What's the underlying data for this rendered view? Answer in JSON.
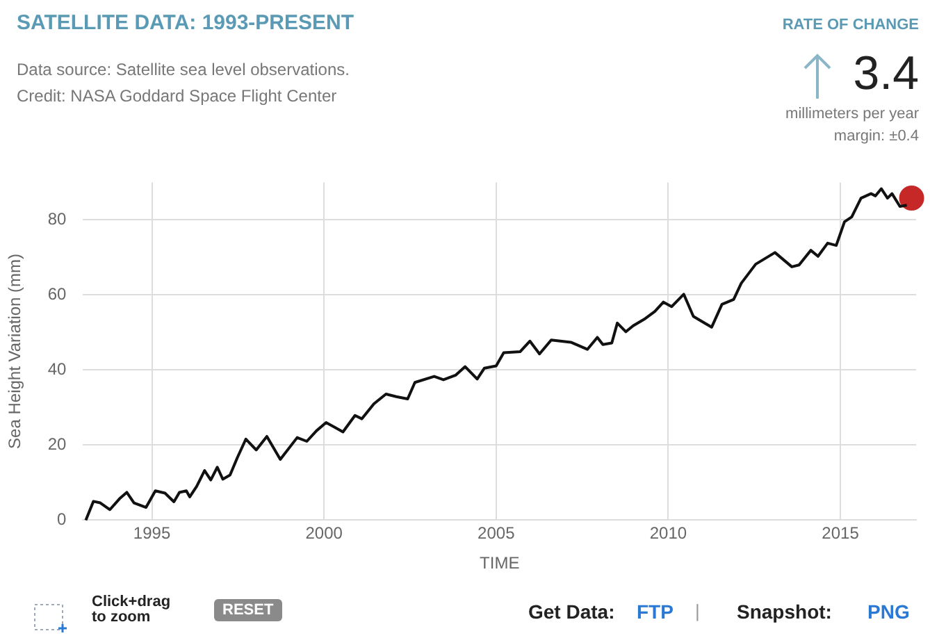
{
  "chart_data": {
    "type": "line",
    "title": "SATELLITE DATA: 1993-PRESENT",
    "subtitle": "Data source: Satellite sea level observations.",
    "xlabel": "TIME",
    "ylabel": "Sea Height Variation (mm)",
    "annotations": [
      "Credit: NASA Goddard Space Flight Center",
      "RATE OF CHANGE",
      "3.4",
      "millimeters per year",
      "margin: ±0.4",
      "Click+drag to zoom",
      "RESET",
      "Get Data:",
      "FTP",
      "|",
      "Snapshot:",
      "PNG"
    ],
    "xlim": [
      1993,
      2017.2
    ],
    "xticks": [
      1995,
      2000,
      2005,
      2010,
      2015
    ],
    "ylim": [
      0,
      90
    ],
    "yticks": [
      0,
      20,
      40,
      60,
      80
    ],
    "grid": true,
    "legend": false,
    "series": [
      {
        "color": "#111111",
        "marker": "none",
        "line_style": "solid",
        "x": [
          1993.08,
          1993.3,
          1993.5,
          1993.78,
          1994.06,
          1994.27,
          1994.48,
          1994.83,
          1995.1,
          1995.38,
          1995.64,
          1995.8,
          1996.0,
          1996.1,
          1996.3,
          1996.53,
          1996.71,
          1996.9,
          1997.06,
          1997.27,
          1997.48,
          1997.73,
          1998.03,
          1998.34,
          1998.73,
          1999.22,
          1999.5,
          1999.78,
          2000.06,
          2000.3,
          2000.55,
          2000.9,
          2001.1,
          2001.45,
          2001.8,
          2002.1,
          2002.43,
          2002.64,
          2003.2,
          2003.47,
          2003.82,
          2004.1,
          2004.45,
          2004.66,
          2005.0,
          2005.22,
          2005.7,
          2005.98,
          2006.26,
          2006.6,
          2007.17,
          2007.65,
          2007.94,
          2008.1,
          2008.36,
          2008.52,
          2008.77,
          2008.98,
          2009.33,
          2009.61,
          2009.86,
          2010.1,
          2010.45,
          2010.73,
          2011.26,
          2011.56,
          2011.9,
          2012.12,
          2012.54,
          2013.1,
          2013.59,
          2013.8,
          2014.14,
          2014.35,
          2014.63,
          2014.88,
          2015.12,
          2015.33,
          2015.6,
          2015.89,
          2016.02,
          2016.19,
          2016.37,
          2016.5,
          2016.73,
          2016.93
        ],
        "values": [
          0,
          5,
          4.6,
          2.8,
          5.7,
          7.4,
          4.6,
          3.4,
          7.8,
          7.2,
          4.9,
          7.4,
          7.8,
          6.2,
          9,
          13.2,
          10.7,
          14.1,
          10.9,
          12,
          16.6,
          21.6,
          18.7,
          22.3,
          16.2,
          22,
          21,
          23.8,
          26,
          24.8,
          23.5,
          27.9,
          27,
          31,
          33.6,
          32.9,
          32.3,
          36.7,
          38.3,
          37.4,
          38.6,
          40.9,
          37.6,
          40.5,
          41.1,
          44.6,
          44.9,
          47.7,
          44.3,
          48,
          47.4,
          45.5,
          48.7,
          46.8,
          47.2,
          52.5,
          50.2,
          51.8,
          53.7,
          55.6,
          58.1,
          56.9,
          60.2,
          54.3,
          51.4,
          57.5,
          58.8,
          63.1,
          68.2,
          71.3,
          67.5,
          68,
          71.9,
          70.3,
          73.8,
          73.2,
          79.5,
          80.8,
          85.8,
          87,
          86.4,
          88.3,
          85.8,
          87,
          83.6,
          83.9
        ]
      },
      {
        "type": "scatter",
        "color": "#c62828",
        "marker": "circle",
        "x": [
          2017.07
        ],
        "values": [
          85.8
        ]
      }
    ]
  }
}
